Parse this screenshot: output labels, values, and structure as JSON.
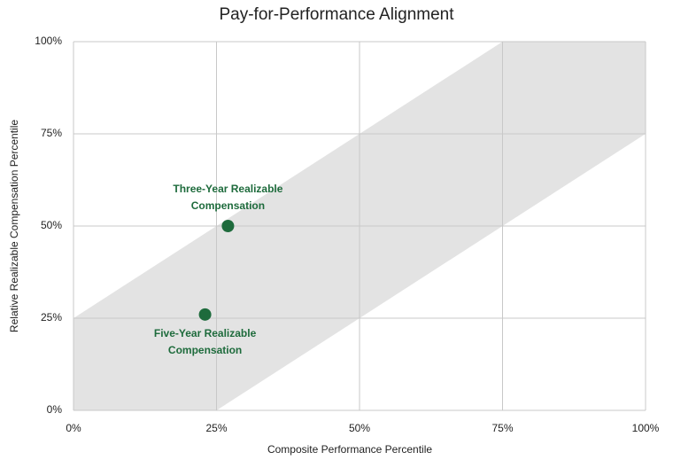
{
  "chart_data": {
    "type": "scatter",
    "title": "Pay-for-Performance Alignment",
    "x_label": "Composite Performance Percentile",
    "y_label": "Relative Realizable Compensation Percentile",
    "xlim": [
      0,
      100
    ],
    "ylim": [
      0,
      100
    ],
    "xticks": [
      {
        "value": 0,
        "label": "0%"
      },
      {
        "value": 25,
        "label": "25%"
      },
      {
        "value": 50,
        "label": "50%"
      },
      {
        "value": 75,
        "label": "75%"
      },
      {
        "value": 100,
        "label": "100%"
      }
    ],
    "yticks": [
      {
        "value": 0,
        "label": "0%"
      },
      {
        "value": 25,
        "label": "25%"
      },
      {
        "value": 50,
        "label": "50%"
      },
      {
        "value": 75,
        "label": "75%"
      },
      {
        "value": 100,
        "label": "100%"
      }
    ],
    "grid": true,
    "band": {
      "color": "#e3e3e3",
      "x": [
        0,
        0,
        75,
        100,
        100,
        25
      ],
      "y": [
        0,
        25,
        100,
        100,
        75,
        0
      ]
    },
    "points": [
      {
        "label": "Three-Year Realizable Compensation",
        "x": 27,
        "y": 50,
        "label_position": "above"
      },
      {
        "label": "Five-Year Realizable Compensation",
        "x": 23,
        "y": 26,
        "label_position": "below"
      }
    ],
    "color": "#1e6b3c"
  }
}
